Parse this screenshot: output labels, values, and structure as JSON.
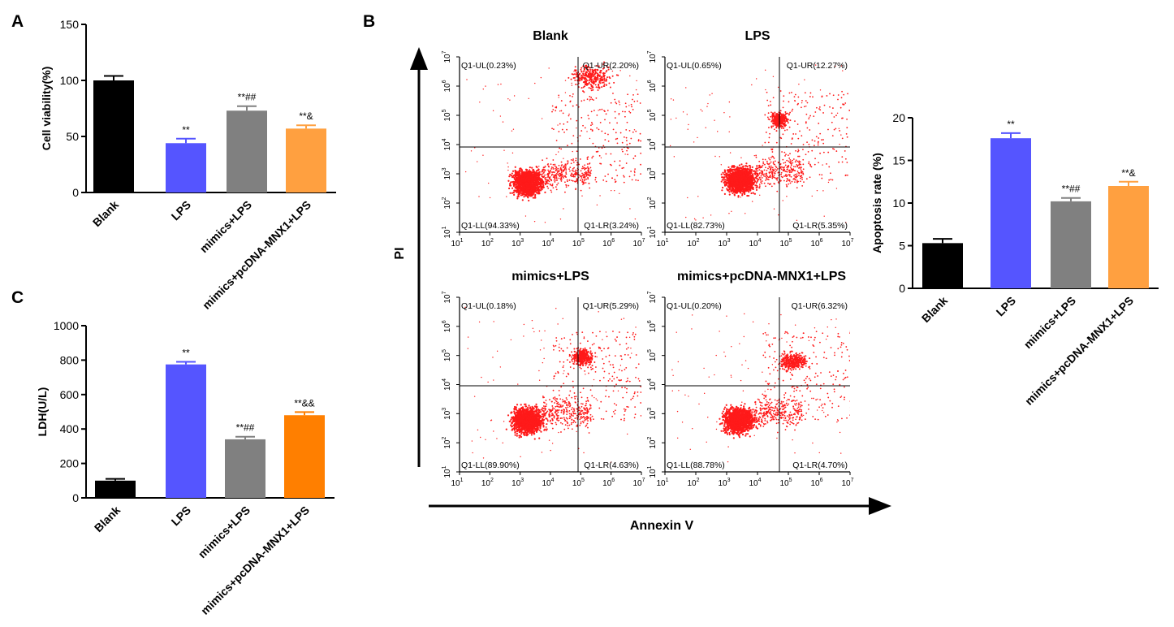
{
  "panels": {
    "A": "A",
    "B": "B",
    "C": "C"
  },
  "chart_data": [
    {
      "id": "A",
      "type": "bar",
      "title": "",
      "xlabel": "",
      "ylabel": "Cell viability(%)",
      "categories": [
        "Blank",
        "LPS",
        "mimics+LPS",
        "mimics+pcDNA-MNX1+LPS"
      ],
      "values": [
        100,
        44,
        73,
        57
      ],
      "errors": [
        4,
        4,
        4,
        3
      ],
      "significance": [
        "",
        "**",
        "**##",
        "**&"
      ],
      "colors": [
        "#000000",
        "#5555ff",
        "#808080",
        "#ffa040"
      ],
      "ylim": [
        0,
        150
      ],
      "yticks": [
        0,
        50,
        100,
        150
      ]
    },
    {
      "id": "C",
      "type": "bar",
      "title": "",
      "xlabel": "",
      "ylabel": "LDH(U/L)",
      "categories": [
        "Blank",
        "LPS",
        "mimics+LPS",
        "mimics+pcDNA-MNX1+LPS"
      ],
      "values": [
        100,
        775,
        340,
        480
      ],
      "errors": [
        10,
        15,
        15,
        18
      ],
      "significance": [
        "",
        "**",
        "**##",
        "**&&"
      ],
      "colors": [
        "#000000",
        "#5555ff",
        "#808080",
        "#ff7f00"
      ],
      "ylim": [
        0,
        1000
      ],
      "yticks": [
        0,
        200,
        400,
        600,
        800,
        1000
      ]
    },
    {
      "id": "B-bar",
      "type": "bar",
      "title": "",
      "xlabel": "",
      "ylabel": "Apoptosis rate (%)",
      "categories": [
        "Blank",
        "LPS",
        "mimics+LPS",
        "mimics+pcDNA-MNX1+LPS"
      ],
      "values": [
        5.3,
        17.6,
        10.2,
        12.0
      ],
      "errors": [
        0.5,
        0.6,
        0.4,
        0.5
      ],
      "significance": [
        "",
        "**",
        "**##",
        "**&"
      ],
      "colors": [
        "#000000",
        "#5555ff",
        "#808080",
        "#ffa040"
      ],
      "ylim": [
        0,
        20
      ],
      "yticks": [
        0,
        5,
        10,
        15,
        20
      ]
    },
    {
      "id": "B-flow",
      "type": "scatter",
      "xlabel": "Annexin V",
      "ylabel": "PI",
      "axis_exponents": [
        1,
        2,
        3,
        4,
        5,
        6,
        7
      ],
      "plots": [
        {
          "title": "Blank",
          "ul": "Q1-UL(0.23%)",
          "ur": "Q1-UR(2.20%)",
          "ll": "Q1-LL(94.33%)",
          "lr": "Q1-LR(3.24%)"
        },
        {
          "title": "LPS",
          "ul": "Q1-UL(0.65%)",
          "ur": "Q1-UR(12.27%)",
          "ll": "Q1-LL(82.73%)",
          "lr": "Q1-LR(5.35%)"
        },
        {
          "title": "mimics+LPS",
          "ul": "Q1-UL(0.18%)",
          "ur": "Q1-UR(5.29%)",
          "ll": "Q1-LL(89.90%)",
          "lr": "Q1-LR(4.63%)"
        },
        {
          "title": "mimics+pcDNA-MNX1+LPS",
          "ul": "Q1-UL(0.20%)",
          "ur": "Q1-UR(6.32%)",
          "ll": "Q1-LL(88.78%)",
          "lr": "Q1-LR(4.70%)"
        }
      ]
    }
  ]
}
